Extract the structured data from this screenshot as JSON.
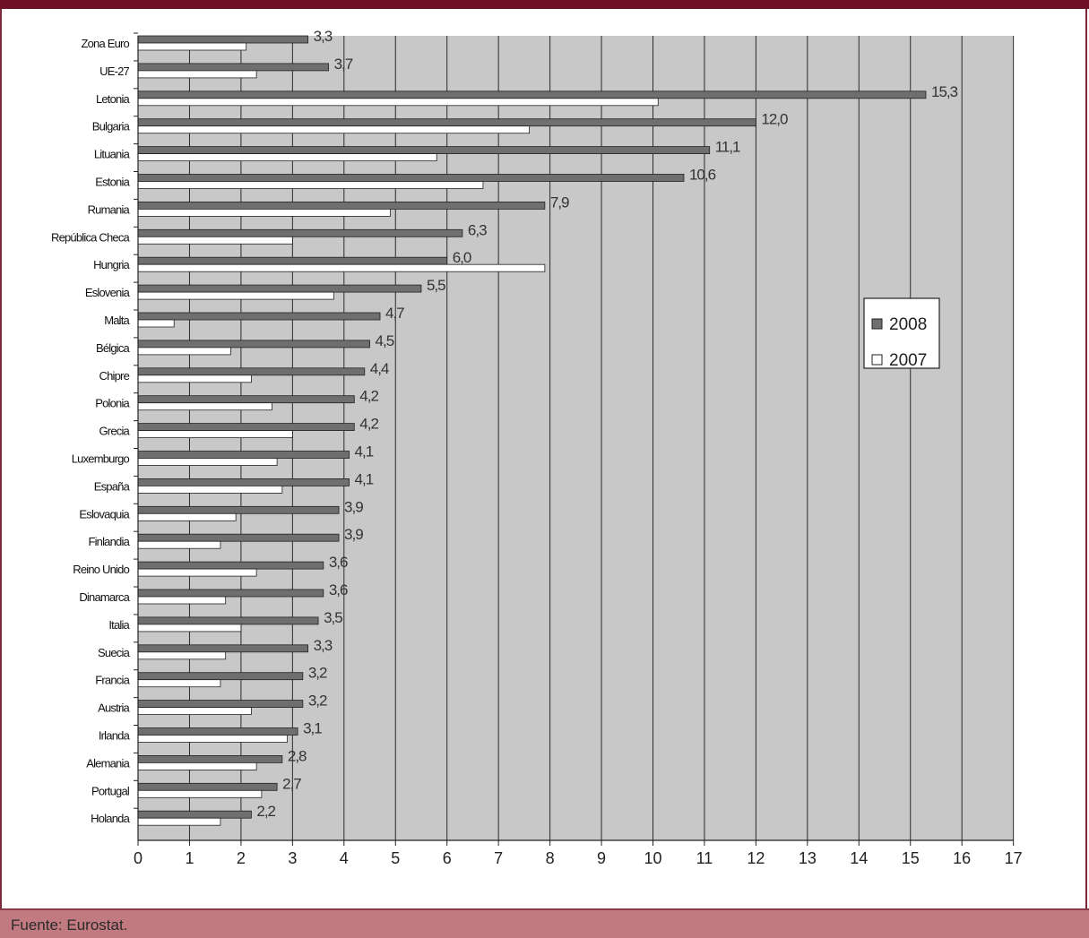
{
  "footer": {
    "source": "Fuente: Eurostat."
  },
  "colors": {
    "plot_bg": "#c8c8c8",
    "grid": "#2a2a2a",
    "series_2008": "#6f6f6f",
    "series_2007": "#ffffff"
  },
  "chart_data": {
    "type": "bar",
    "orientation": "horizontal",
    "categories": [
      "Zona Euro",
      "UE-27",
      "Letonia",
      "Bulgaria",
      "Lituania",
      "Estonia",
      "Rumania",
      "República Checa",
      "Hungria",
      "Eslovenia",
      "Malta",
      "Bélgica",
      "Chipre",
      "Polonia",
      "Grecia",
      "Luxemburgo",
      "España",
      "Eslovaquia",
      "Finlandia",
      "Reino Unido",
      "Dinamarca",
      "Italia",
      "Suecia",
      "Francia",
      "Austria",
      "Irlanda",
      "Alemania",
      "Portugal",
      "Holanda"
    ],
    "series": [
      {
        "name": "2008",
        "values": [
          3.3,
          3.7,
          15.3,
          12.0,
          11.1,
          10.6,
          7.9,
          6.3,
          6.0,
          5.5,
          4.7,
          4.5,
          4.4,
          4.2,
          4.2,
          4.1,
          4.1,
          3.9,
          3.9,
          3.6,
          3.6,
          3.5,
          3.3,
          3.2,
          3.2,
          3.1,
          2.8,
          2.7,
          2.2
        ],
        "labels": [
          "3,3",
          "3,7",
          "15,3",
          "12,0",
          "11,1",
          "10,6",
          "7,9",
          "6,3",
          "6,0",
          "5,5",
          "4,7",
          "4,5",
          "4,4",
          "4,2",
          "4,2",
          "4,1",
          "4,1",
          "3,9",
          "3,9",
          "3,6",
          "3,6",
          "3,5",
          "3,3",
          "3,2",
          "3,2",
          "3,1",
          "2,8",
          "2,7",
          "2,2"
        ]
      },
      {
        "name": "2007",
        "values": [
          2.1,
          2.3,
          10.1,
          7.6,
          5.8,
          6.7,
          4.9,
          3.0,
          7.9,
          3.8,
          0.7,
          1.8,
          2.2,
          2.6,
          3.0,
          2.7,
          2.8,
          1.9,
          1.6,
          2.3,
          1.7,
          2.0,
          1.7,
          1.6,
          2.2,
          2.9,
          2.3,
          2.4,
          1.6
        ]
      }
    ],
    "xlim": [
      0,
      17
    ],
    "xticks": [
      0,
      1,
      2,
      3,
      4,
      5,
      6,
      7,
      8,
      9,
      10,
      11,
      12,
      13,
      14,
      15,
      16,
      17
    ],
    "grid": "vertical",
    "legend_position": "right"
  }
}
